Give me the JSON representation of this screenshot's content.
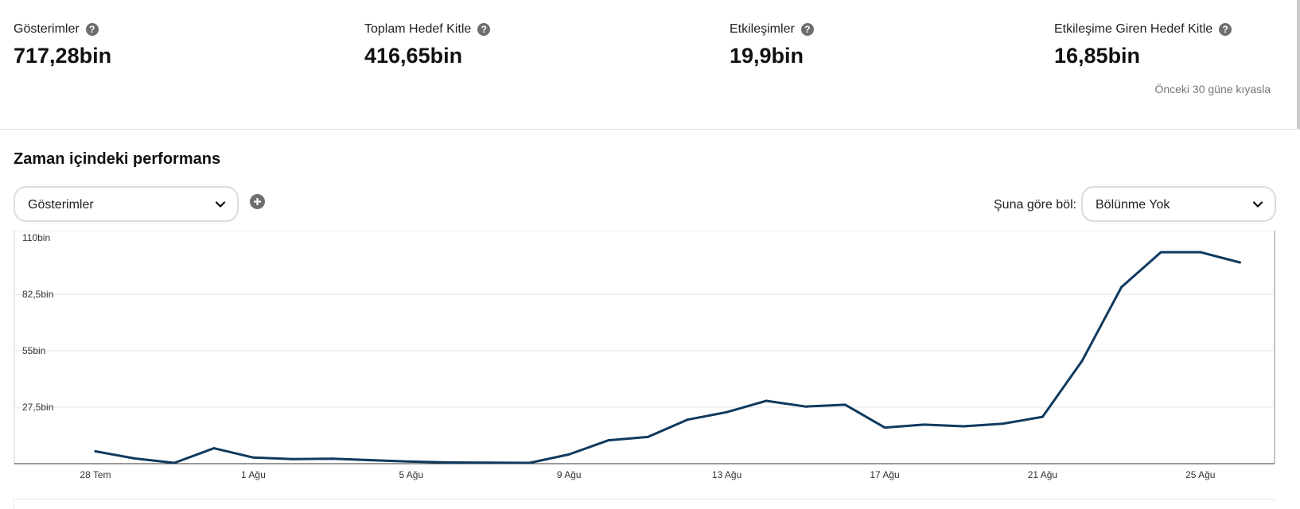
{
  "metrics": [
    {
      "label": "Gösterimler",
      "value": "717,28bin"
    },
    {
      "label": "Toplam Hedef Kitle",
      "value": "416,65bin"
    },
    {
      "label": "Etkileşimler",
      "value": "19,9bin"
    },
    {
      "label": "Etkileşime Giren Hedef Kitle",
      "value": "16,85bin"
    }
  ],
  "compare_note": "Önceki 30 güne kıyasla",
  "help_glyph": "?",
  "section": {
    "title": "Zaman içindeki performans",
    "metric_select": "Gösterimler",
    "split_label": "Şuna göre böl:",
    "split_select": "Bölünme Yok"
  },
  "icons": {
    "help": "question-circle-icon",
    "chevron": "chevron-down-icon",
    "add": "plus-circle-icon"
  },
  "colors": {
    "line": "#0f3a5f",
    "help_icon": "#6e6e6e",
    "grid": "#e6e6e6"
  },
  "chart_data": {
    "type": "line",
    "series": [
      {
        "values": [
          6000,
          2500,
          400,
          7500,
          3000,
          2200,
          2400,
          1700,
          1000,
          600,
          500,
          400,
          4500,
          11400,
          13000,
          21400,
          25100,
          30600,
          27800,
          28700,
          17600,
          19000,
          18200,
          19500,
          22800,
          50000,
          86000,
          103000,
          103000,
          98000
        ]
      }
    ],
    "x_tick_labels": [
      "28 Tem",
      "1 Ağu",
      "5 Ağu",
      "9 Ağu",
      "13 Ağu",
      "17 Ağu",
      "21 Ağu",
      "25 Ağu"
    ],
    "x_tick_every": 4,
    "y_ticks": [
      27500,
      55000,
      82500,
      110000
    ],
    "y_tick_labels": [
      "27,5bin",
      "55bin",
      "82,5bin",
      "110bin"
    ],
    "ylim": [
      0,
      110000
    ],
    "grid": true,
    "title": "",
    "xlabel": "",
    "ylabel": ""
  }
}
